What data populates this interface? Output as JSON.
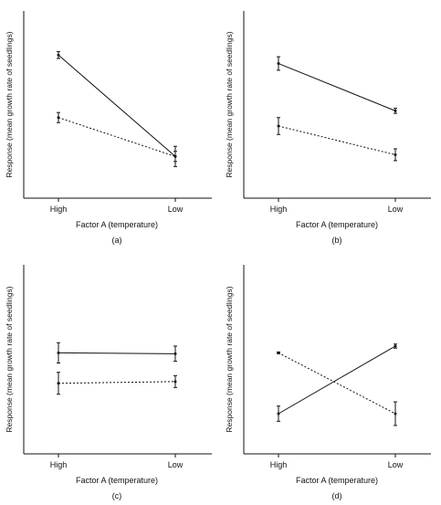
{
  "chart_data": [
    {
      "type": "line",
      "panel_label": "(a)",
      "categories": [
        "High",
        "Low"
      ],
      "xlabel": "Factor A (temperature)",
      "ylabel": "Response (mean growth rate of seedlings)",
      "ylim": [
        0,
        100
      ],
      "y_ticks_labeled": false,
      "grid": false,
      "series": [
        {
          "style": "solid",
          "values": [
            82,
            22
          ],
          "error": [
            2,
            3
          ]
        },
        {
          "style": "dotted",
          "values": [
            45,
            22
          ],
          "error": [
            3,
            6
          ]
        }
      ]
    },
    {
      "type": "line",
      "panel_label": "(b)",
      "categories": [
        "High",
        "Low"
      ],
      "xlabel": "Factor A (temperature)",
      "ylabel": "Response (mean growth rate of seedlings)",
      "ylim": [
        0,
        100
      ],
      "y_ticks_labeled": false,
      "grid": false,
      "series": [
        {
          "style": "solid",
          "values": [
            77,
            49
          ],
          "error": [
            4,
            1.5
          ]
        },
        {
          "style": "dotted",
          "values": [
            40,
            23
          ],
          "error": [
            5,
            3.5
          ]
        }
      ]
    },
    {
      "type": "line",
      "panel_label": "(c)",
      "categories": [
        "High",
        "Low"
      ],
      "xlabel": "Factor A (temperature)",
      "ylabel": "Response (mean growth rate of seedlings)",
      "ylim": [
        0,
        100
      ],
      "y_ticks_labeled": false,
      "grid": false,
      "series": [
        {
          "style": "solid",
          "values": [
            56,
            55.5
          ],
          "error": [
            6,
            4.5
          ]
        },
        {
          "style": "dotted",
          "values": [
            38,
            39
          ],
          "error": [
            6.5,
            3.5
          ]
        }
      ]
    },
    {
      "type": "line",
      "panel_label": "(d)",
      "categories": [
        "High",
        "Low"
      ],
      "xlabel": "Factor A (temperature)",
      "ylabel": "Response (mean growth rate of seedlings)",
      "ylim": [
        0,
        100
      ],
      "y_ticks_labeled": false,
      "grid": false,
      "series": [
        {
          "style": "solid",
          "values": [
            20,
            60
          ],
          "error": [
            4.5,
            1.2
          ]
        },
        {
          "style": "dotted",
          "values": [
            56,
            20
          ],
          "error": [
            0.5,
            7
          ]
        }
      ]
    }
  ]
}
